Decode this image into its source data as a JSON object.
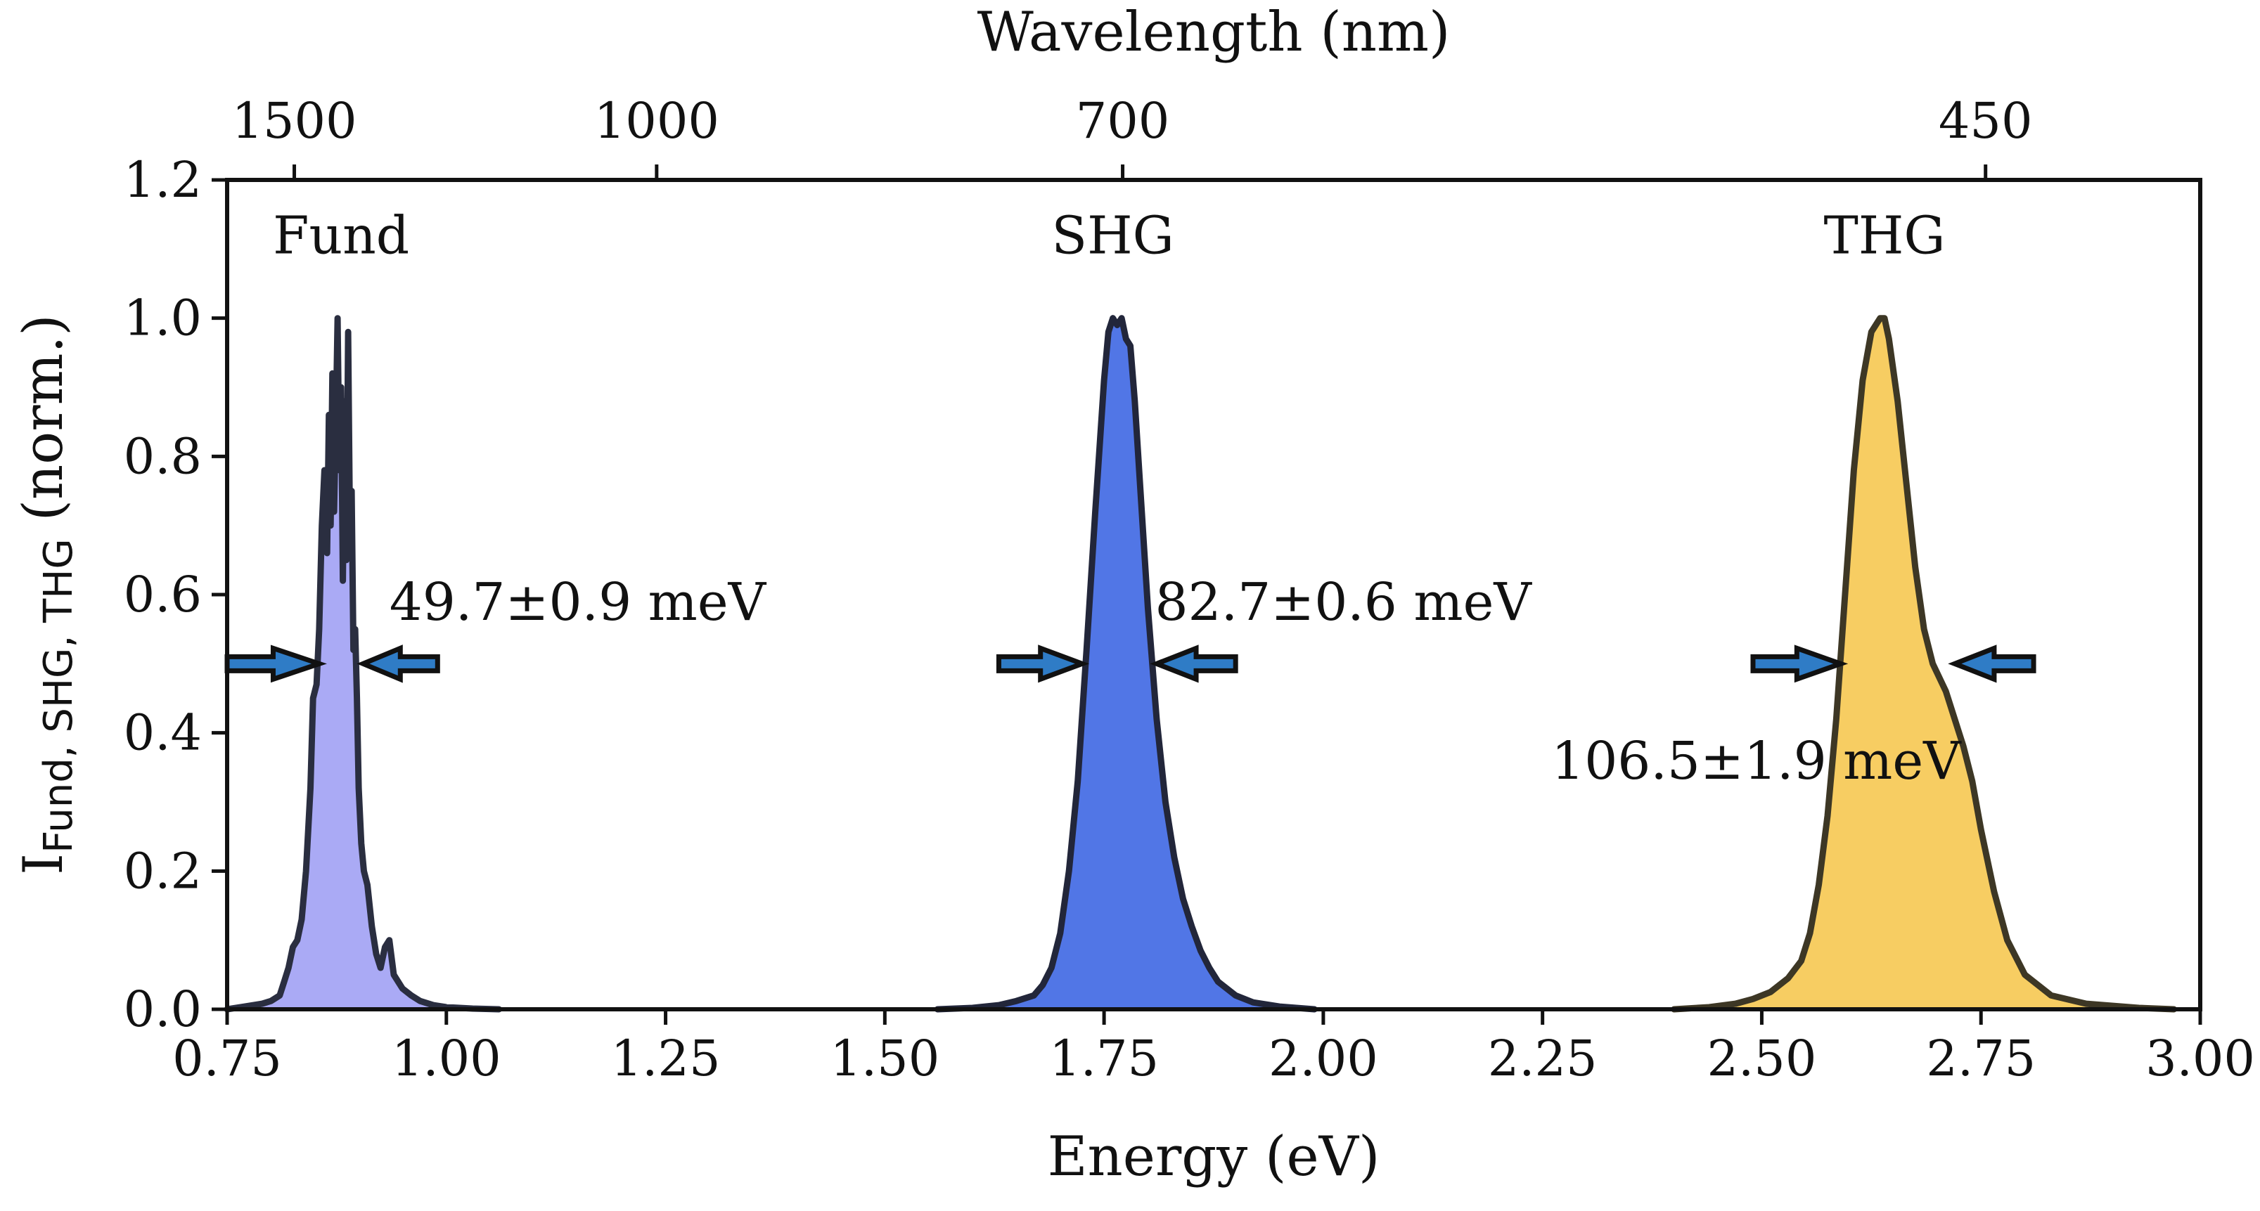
{
  "chart_data": {
    "type": "area",
    "xlabel": "Energy (eV)",
    "x2label": "Wavelength (nm)",
    "ylabel_main": "I",
    "ylabel_sub": "Fund, SHG, THG",
    "ylabel_tail": " (norm.)",
    "xlim": [
      0.75,
      3.0
    ],
    "ylim": [
      0.0,
      1.2
    ],
    "xticks": [
      0.75,
      1.0,
      1.25,
      1.5,
      1.75,
      2.0,
      2.25,
      2.5,
      2.75,
      3.0
    ],
    "xtick_labels": [
      "0.75",
      "1.00",
      "1.25",
      "1.50",
      "1.75",
      "2.00",
      "2.25",
      "2.50",
      "2.75",
      "3.00"
    ],
    "yticks": [
      0.0,
      0.2,
      0.4,
      0.6,
      0.8,
      1.0,
      1.2
    ],
    "ytick_labels": [
      "0.0",
      "0.2",
      "0.4",
      "0.6",
      "0.8",
      "1.0",
      "1.2"
    ],
    "top_ticks": [
      {
        "label": "1500",
        "energy": 0.8266
      },
      {
        "label": "1000",
        "energy": 1.2398
      },
      {
        "label": "700",
        "energy": 1.7712
      },
      {
        "label": "450",
        "energy": 2.7552
      }
    ],
    "series": [
      {
        "name": "Fund",
        "fill": "#aaaaf5",
        "stroke": "#2a2e40",
        "label_pos": [
          0.88,
          1.12
        ],
        "fwhm_text": "49.7±0.9 meV",
        "fwhm_text_pos": [
          0.935,
          0.59
        ],
        "fwhm_arrows": {
          "y": 0.5,
          "left": [
            0.75,
            0.855
          ],
          "right": [
            0.99,
            0.905
          ]
        },
        "x": [
          0.75,
          0.77,
          0.79,
          0.8,
          0.81,
          0.815,
          0.82,
          0.825,
          0.83,
          0.835,
          0.84,
          0.845,
          0.848,
          0.852,
          0.855,
          0.858,
          0.861,
          0.864,
          0.866,
          0.868,
          0.87,
          0.872,
          0.874,
          0.876,
          0.878,
          0.88,
          0.882,
          0.884,
          0.886,
          0.888,
          0.89,
          0.892,
          0.894,
          0.896,
          0.898,
          0.9,
          0.903,
          0.906,
          0.91,
          0.915,
          0.92,
          0.925,
          0.93,
          0.935,
          0.94,
          0.945,
          0.95,
          0.96,
          0.97,
          0.985,
          1.0,
          1.03,
          1.06
        ],
        "y": [
          0.0,
          0.004,
          0.008,
          0.012,
          0.02,
          0.04,
          0.06,
          0.09,
          0.1,
          0.13,
          0.2,
          0.32,
          0.45,
          0.47,
          0.55,
          0.7,
          0.78,
          0.66,
          0.86,
          0.7,
          0.92,
          0.72,
          0.85,
          1.0,
          0.78,
          0.9,
          0.62,
          0.88,
          0.65,
          0.98,
          0.7,
          0.75,
          0.52,
          0.55,
          0.45,
          0.32,
          0.24,
          0.2,
          0.18,
          0.12,
          0.08,
          0.06,
          0.09,
          0.1,
          0.05,
          0.04,
          0.03,
          0.02,
          0.012,
          0.006,
          0.003,
          0.001,
          0.0
        ]
      },
      {
        "name": "SHG",
        "fill": "#5176e6",
        "stroke": "#22263a",
        "label_pos": [
          1.76,
          1.12
        ],
        "fwhm_text": "82.7±0.6 meV",
        "fwhm_text_pos": [
          1.808,
          0.59
        ],
        "fwhm_arrows": {
          "y": 0.5,
          "left": [
            1.63,
            1.725
          ],
          "right": [
            1.825,
            1.81
          ]
        },
        "x": [
          1.56,
          1.6,
          1.63,
          1.65,
          1.67,
          1.68,
          1.69,
          1.7,
          1.71,
          1.72,
          1.73,
          1.74,
          1.75,
          1.755,
          1.76,
          1.765,
          1.77,
          1.775,
          1.78,
          1.785,
          1.79,
          1.8,
          1.81,
          1.82,
          1.83,
          1.84,
          1.85,
          1.86,
          1.87,
          1.88,
          1.9,
          1.92,
          1.95,
          1.99
        ],
        "y": [
          0.0,
          0.002,
          0.006,
          0.012,
          0.02,
          0.035,
          0.06,
          0.11,
          0.2,
          0.33,
          0.52,
          0.72,
          0.91,
          0.98,
          1.0,
          0.99,
          1.0,
          0.97,
          0.96,
          0.88,
          0.78,
          0.58,
          0.42,
          0.3,
          0.22,
          0.16,
          0.12,
          0.085,
          0.06,
          0.04,
          0.02,
          0.01,
          0.004,
          0.0
        ]
      },
      {
        "name": "THG",
        "fill": "#f7cd62",
        "stroke": "#3d3725",
        "label_pos": [
          2.64,
          1.12
        ],
        "fwhm_text": "106.5±1.9 meV",
        "fwhm_text_pos": [
          2.26,
          0.36
        ],
        "fwhm_arrows": {
          "y": 0.5,
          "left": [
            2.49,
            2.59
          ],
          "right": [
            2.81,
            2.72
          ]
        },
        "x": [
          2.4,
          2.44,
          2.47,
          2.49,
          2.51,
          2.53,
          2.545,
          2.555,
          2.565,
          2.575,
          2.585,
          2.595,
          2.605,
          2.615,
          2.625,
          2.635,
          2.64,
          2.645,
          2.655,
          2.665,
          2.675,
          2.685,
          2.695,
          2.71,
          2.72,
          2.73,
          2.74,
          2.75,
          2.765,
          2.78,
          2.8,
          2.83,
          2.87,
          2.93,
          2.97
        ],
        "y": [
          0.0,
          0.003,
          0.008,
          0.015,
          0.025,
          0.045,
          0.07,
          0.11,
          0.18,
          0.28,
          0.42,
          0.6,
          0.78,
          0.91,
          0.98,
          1.0,
          1.0,
          0.97,
          0.88,
          0.76,
          0.64,
          0.55,
          0.5,
          0.46,
          0.42,
          0.38,
          0.33,
          0.26,
          0.17,
          0.1,
          0.05,
          0.02,
          0.008,
          0.002,
          0.0
        ]
      }
    ]
  }
}
